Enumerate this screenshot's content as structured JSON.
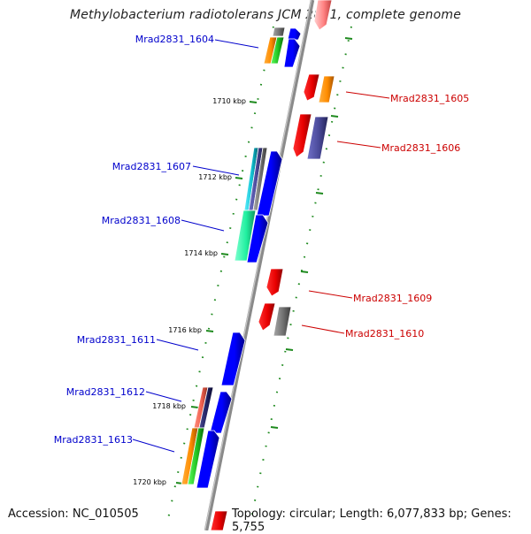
{
  "title": "Methylobacterium radiotolerans JCM 2831, complete genome",
  "accession": "Accession: NC_010505",
  "summary": "Topology: circular; Length: 6,077,833 bp; Genes: 5,755",
  "colors": {
    "forward_label": "#0000cc",
    "reverse_label": "#cc0000",
    "backbone": "#8a8a8a",
    "tick": "#1e8a1e"
  },
  "ticks": [
    "1710 kbp",
    "1712 kbp",
    "1714 kbp",
    "1716 kbp",
    "1718 kbp",
    "1720 kbp"
  ],
  "forward_labels": [
    "Mrad2831_1604",
    "Mrad2831_1607",
    "Mrad2831_1608",
    "Mrad2831_1611",
    "Mrad2831_1612",
    "Mrad2831_1613"
  ],
  "reverse_labels": [
    "Mrad2831_1605",
    "Mrad2831_1606",
    "Mrad2831_1609",
    "Mrad2831_1610"
  ]
}
